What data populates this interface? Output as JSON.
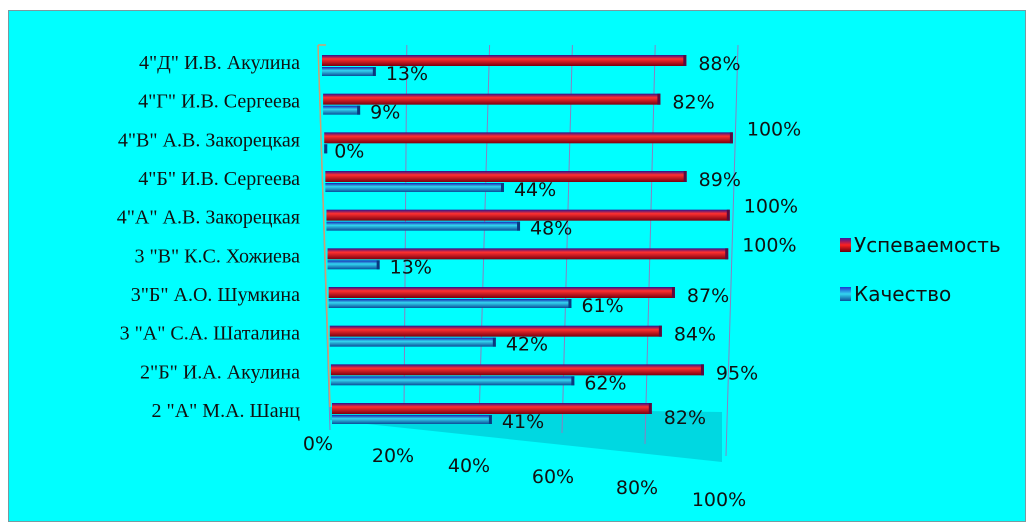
{
  "chart_data": {
    "type": "bar",
    "orientation": "horizontal",
    "categories": [
      "2  \"А\" М.А. Шанц",
      "2\"Б\" И.А. Акулина",
      "3 \"А\" С.А. Шаталина",
      "3\"Б\" А.О. Шумкина",
      "3 \"В\" К.С. Хожиева",
      "4\"А\" А.В. Закорецкая",
      "4\"Б\" И.В. Сергеева",
      "4\"В\" А.В. Закорецкая",
      "4\"Г\" И.В. Сергеева",
      "4\"Д\" И.В. Акулина"
    ],
    "series": [
      {
        "name": "Успеваемость",
        "values": [
          82,
          95,
          84,
          87,
          100,
          100,
          89,
          100,
          82,
          88
        ],
        "labels": [
          "82%",
          "95%",
          "84%",
          "87%",
          "100%",
          "100%",
          "89%",
          "100%",
          "82%",
          "88%"
        ],
        "color": "#e8121f"
      },
      {
        "name": "Качество",
        "values": [
          41,
          62,
          42,
          61,
          13,
          48,
          44,
          0,
          9,
          13
        ],
        "labels": [
          "41%",
          "62%",
          "42%",
          "61%",
          "13%",
          "48%",
          "44%",
          "0%",
          "9%",
          "13%"
        ],
        "color": "#1e8fd6"
      }
    ],
    "xlim": [
      0,
      100
    ],
    "x_ticks": [
      "0%",
      "20%",
      "40%",
      "60%",
      "80%",
      "100%"
    ],
    "legend_position": "right",
    "title": "",
    "xlabel": "",
    "ylabel": ""
  }
}
